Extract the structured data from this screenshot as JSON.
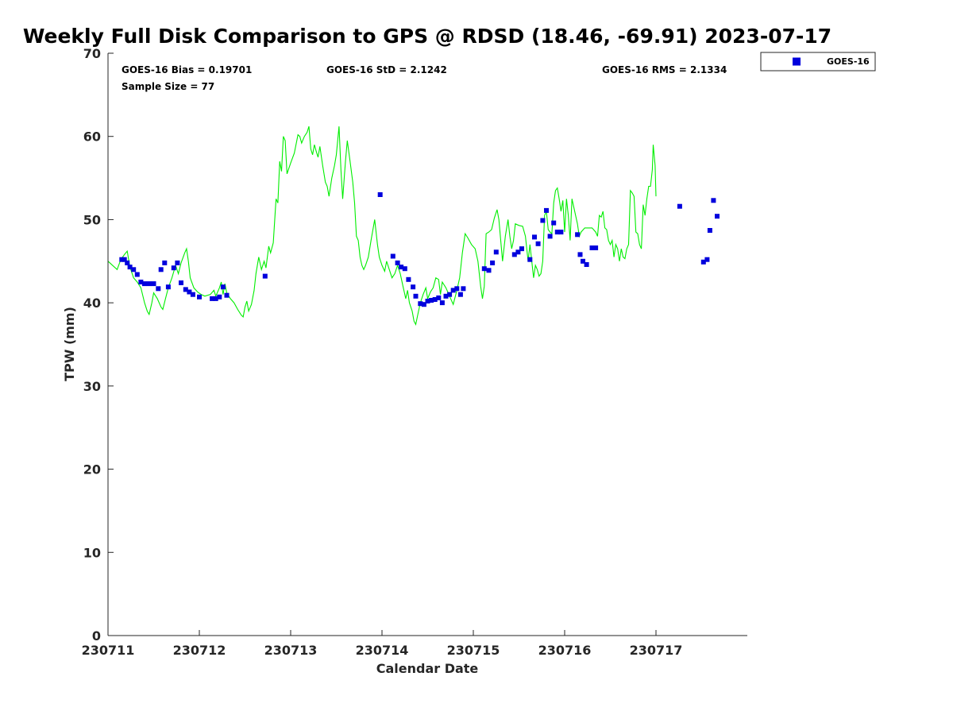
{
  "chart_data": {
    "type": "line",
    "title": "Weekly Full Disk Comparison to GPS @ RDSD (18.46, -69.91) 2023-07-17",
    "xlabel": "Calendar Date",
    "ylabel": "TPW (mm)",
    "xlim": [
      0,
      7
    ],
    "ylim": [
      0,
      70
    ],
    "x_ticks": [
      0,
      1,
      2,
      3,
      4,
      5,
      6
    ],
    "x_tick_labels": [
      "230711",
      "230712",
      "230713",
      "230714",
      "230715",
      "230716",
      "230717"
    ],
    "y_ticks": [
      0,
      10,
      20,
      30,
      40,
      50,
      60,
      70
    ],
    "y_tick_labels": [
      "0",
      "10",
      "20",
      "30",
      "40",
      "50",
      "60",
      "70"
    ],
    "stats": {
      "bias": "GOES-16 Bias = 0.19701",
      "std": "GOES-16 StD = 2.1242",
      "rms": "GOES-16 RMS = 2.1334",
      "sample": "Sample Size = 77"
    },
    "legend": {
      "label": "GOES-16",
      "position": "outside-top-right"
    },
    "colors": {
      "gps_line": "#00ee00",
      "goes_marker": "#0000dd"
    },
    "series": [
      {
        "name": "GPS",
        "kind": "line",
        "points": [
          [
            0.0,
            45.0
          ],
          [
            0.1,
            44.0
          ],
          [
            0.14,
            45.2
          ],
          [
            0.18,
            45.8
          ],
          [
            0.21,
            46.2
          ],
          [
            0.24,
            44.3
          ],
          [
            0.28,
            43.0
          ],
          [
            0.32,
            42.5
          ],
          [
            0.36,
            41.8
          ],
          [
            0.4,
            40.0
          ],
          [
            0.43,
            39.0
          ],
          [
            0.45,
            38.6
          ],
          [
            0.48,
            40.0
          ],
          [
            0.5,
            41.2
          ],
          [
            0.54,
            40.5
          ],
          [
            0.58,
            39.5
          ],
          [
            0.6,
            39.2
          ],
          [
            0.63,
            40.5
          ],
          [
            0.66,
            41.8
          ],
          [
            0.7,
            43.0
          ],
          [
            0.74,
            44.5
          ],
          [
            0.77,
            43.5
          ],
          [
            0.8,
            44.8
          ],
          [
            0.84,
            46.0
          ],
          [
            0.86,
            46.5
          ],
          [
            0.88,
            45.0
          ],
          [
            0.9,
            43.0
          ],
          [
            0.94,
            41.8
          ],
          [
            0.98,
            41.3
          ],
          [
            1.02,
            41.0
          ],
          [
            1.06,
            40.8
          ],
          [
            1.12,
            41.0
          ],
          [
            1.16,
            41.5
          ],
          [
            1.18,
            40.8
          ],
          [
            1.22,
            41.8
          ],
          [
            1.24,
            42.5
          ],
          [
            1.26,
            41.0
          ],
          [
            1.28,
            42.3
          ],
          [
            1.3,
            41.2
          ],
          [
            1.34,
            40.5
          ],
          [
            1.38,
            40.0
          ],
          [
            1.42,
            39.2
          ],
          [
            1.46,
            38.5
          ],
          [
            1.48,
            38.3
          ],
          [
            1.5,
            39.5
          ],
          [
            1.52,
            40.2
          ],
          [
            1.54,
            39.0
          ],
          [
            1.57,
            39.8
          ],
          [
            1.6,
            41.5
          ],
          [
            1.62,
            43.5
          ],
          [
            1.65,
            45.5
          ],
          [
            1.68,
            44.0
          ],
          [
            1.71,
            45.0
          ],
          [
            1.73,
            44.2
          ],
          [
            1.76,
            46.8
          ],
          [
            1.78,
            46.0
          ],
          [
            1.81,
            47.2
          ],
          [
            1.84,
            52.5
          ],
          [
            1.86,
            52.0
          ],
          [
            1.88,
            57.0
          ],
          [
            1.9,
            55.8
          ],
          [
            1.92,
            60.0
          ],
          [
            1.94,
            59.5
          ],
          [
            1.96,
            55.5
          ],
          [
            2.0,
            56.8
          ],
          [
            2.04,
            58.0
          ],
          [
            2.08,
            60.2
          ],
          [
            2.1,
            60.0
          ],
          [
            2.12,
            59.2
          ],
          [
            2.15,
            60.0
          ],
          [
            2.18,
            60.5
          ],
          [
            2.2,
            61.2
          ],
          [
            2.22,
            58.5
          ],
          [
            2.24,
            57.8
          ],
          [
            2.26,
            59.0
          ],
          [
            2.28,
            58.2
          ],
          [
            2.3,
            57.5
          ],
          [
            2.32,
            58.8
          ],
          [
            2.35,
            56.5
          ],
          [
            2.38,
            54.5
          ],
          [
            2.4,
            54.0
          ],
          [
            2.42,
            52.8
          ],
          [
            2.45,
            55.0
          ],
          [
            2.48,
            56.5
          ],
          [
            2.5,
            57.8
          ],
          [
            2.53,
            61.2
          ],
          [
            2.55,
            56.0
          ],
          [
            2.57,
            52.5
          ],
          [
            2.6,
            57.0
          ],
          [
            2.62,
            59.5
          ],
          [
            2.65,
            57.0
          ],
          [
            2.68,
            54.5
          ],
          [
            2.7,
            52.0
          ],
          [
            2.72,
            48.0
          ],
          [
            2.74,
            47.5
          ],
          [
            2.76,
            45.5
          ],
          [
            2.78,
            44.5
          ],
          [
            2.8,
            44.0
          ],
          [
            2.82,
            44.5
          ],
          [
            2.85,
            45.5
          ],
          [
            2.88,
            47.5
          ],
          [
            2.92,
            50.0
          ],
          [
            2.95,
            47.0
          ],
          [
            2.97,
            45.5
          ],
          [
            3.0,
            44.5
          ],
          [
            3.03,
            43.8
          ],
          [
            3.05,
            45.0
          ],
          [
            3.08,
            44.0
          ],
          [
            3.11,
            43.0
          ],
          [
            3.14,
            43.5
          ],
          [
            3.17,
            44.5
          ],
          [
            3.2,
            43.5
          ],
          [
            3.23,
            42.0
          ],
          [
            3.26,
            40.5
          ],
          [
            3.28,
            41.5
          ],
          [
            3.3,
            40.0
          ],
          [
            3.33,
            39.0
          ],
          [
            3.35,
            37.8
          ],
          [
            3.37,
            37.4
          ],
          [
            3.39,
            38.5
          ],
          [
            3.42,
            40.0
          ],
          [
            3.45,
            41.0
          ],
          [
            3.48,
            41.8
          ],
          [
            3.5,
            40.5
          ],
          [
            3.53,
            41.3
          ],
          [
            3.56,
            41.8
          ],
          [
            3.59,
            43.0
          ],
          [
            3.62,
            42.8
          ],
          [
            3.64,
            41.0
          ],
          [
            3.66,
            42.5
          ],
          [
            3.7,
            41.8
          ],
          [
            3.74,
            40.8
          ],
          [
            3.78,
            39.8
          ],
          [
            3.82,
            41.5
          ],
          [
            3.85,
            43.0
          ],
          [
            3.88,
            46.0
          ],
          [
            3.91,
            48.3
          ],
          [
            3.94,
            47.8
          ],
          [
            3.98,
            47.0
          ],
          [
            4.02,
            46.5
          ],
          [
            4.05,
            45.0
          ],
          [
            4.08,
            42.0
          ],
          [
            4.1,
            40.5
          ],
          [
            4.12,
            42.0
          ],
          [
            4.14,
            48.3
          ],
          [
            4.17,
            48.5
          ],
          [
            4.2,
            48.8
          ],
          [
            4.23,
            50.2
          ],
          [
            4.26,
            51.2
          ],
          [
            4.28,
            50.0
          ],
          [
            4.3,
            47.5
          ],
          [
            4.32,
            45.0
          ],
          [
            4.35,
            48.0
          ],
          [
            4.38,
            50.0
          ],
          [
            4.4,
            48.0
          ],
          [
            4.42,
            46.5
          ],
          [
            4.44,
            47.5
          ],
          [
            4.46,
            49.5
          ],
          [
            4.5,
            49.3
          ],
          [
            4.54,
            49.2
          ],
          [
            4.57,
            48.0
          ],
          [
            4.6,
            45.0
          ],
          [
            4.62,
            47.0
          ],
          [
            4.64,
            45.0
          ],
          [
            4.66,
            43.0
          ],
          [
            4.68,
            44.5
          ],
          [
            4.7,
            44.0
          ],
          [
            4.72,
            43.2
          ],
          [
            4.74,
            43.5
          ],
          [
            4.76,
            45.0
          ],
          [
            4.78,
            50.5
          ],
          [
            4.8,
            51.0
          ],
          [
            4.82,
            48.8
          ],
          [
            4.84,
            48.5
          ],
          [
            4.86,
            48.3
          ],
          [
            4.88,
            52.0
          ],
          [
            4.9,
            53.5
          ],
          [
            4.92,
            53.8
          ],
          [
            4.94,
            52.5
          ],
          [
            4.96,
            51.0
          ],
          [
            4.98,
            52.3
          ],
          [
            5.0,
            48.5
          ],
          [
            5.02,
            52.5
          ],
          [
            5.04,
            50.5
          ],
          [
            5.06,
            47.5
          ],
          [
            5.08,
            52.5
          ],
          [
            5.1,
            51.5
          ],
          [
            5.12,
            50.5
          ],
          [
            5.14,
            49.5
          ],
          [
            5.16,
            48.0
          ],
          [
            5.18,
            48.5
          ],
          [
            5.22,
            49.0
          ],
          [
            5.3,
            49.0
          ],
          [
            5.34,
            48.5
          ],
          [
            5.36,
            48.0
          ],
          [
            5.38,
            50.5
          ],
          [
            5.4,
            50.3
          ],
          [
            5.42,
            51.0
          ],
          [
            5.44,
            49.0
          ],
          [
            5.46,
            48.8
          ],
          [
            5.48,
            47.5
          ],
          [
            5.5,
            47.0
          ],
          [
            5.52,
            47.5
          ],
          [
            5.54,
            45.5
          ],
          [
            5.56,
            47.0
          ],
          [
            5.58,
            46.5
          ],
          [
            5.6,
            45.0
          ],
          [
            5.62,
            46.5
          ],
          [
            5.64,
            45.5
          ],
          [
            5.66,
            45.3
          ],
          [
            5.68,
            46.5
          ],
          [
            5.7,
            47.0
          ],
          [
            5.72,
            53.5
          ],
          [
            5.74,
            53.2
          ],
          [
            5.76,
            52.8
          ],
          [
            5.78,
            48.5
          ],
          [
            5.8,
            48.3
          ],
          [
            5.82,
            47.0
          ],
          [
            5.84,
            46.5
          ],
          [
            5.86,
            51.8
          ],
          [
            5.88,
            50.5
          ],
          [
            5.9,
            52.5
          ],
          [
            5.92,
            54.0
          ],
          [
            5.94,
            54.0
          ],
          [
            5.96,
            56.0
          ],
          [
            5.97,
            59.0
          ],
          [
            5.99,
            56.5
          ],
          [
            6.0,
            52.8
          ]
        ]
      },
      {
        "name": "GOES-16",
        "kind": "scatter",
        "points": [
          [
            0.15,
            45.2
          ],
          [
            0.18,
            45.2
          ],
          [
            0.21,
            44.8
          ],
          [
            0.24,
            44.3
          ],
          [
            0.28,
            44.0
          ],
          [
            0.32,
            43.4
          ],
          [
            0.36,
            42.5
          ],
          [
            0.4,
            42.3
          ],
          [
            0.45,
            42.3
          ],
          [
            0.5,
            42.3
          ],
          [
            0.55,
            41.7
          ],
          [
            0.58,
            44.0
          ],
          [
            0.62,
            44.8
          ],
          [
            0.66,
            41.9
          ],
          [
            0.72,
            44.2
          ],
          [
            0.76,
            44.8
          ],
          [
            0.8,
            42.4
          ],
          [
            0.85,
            41.6
          ],
          [
            0.89,
            41.3
          ],
          [
            0.93,
            41.0
          ],
          [
            1.0,
            40.7
          ],
          [
            1.14,
            40.5
          ],
          [
            1.18,
            40.5
          ],
          [
            1.22,
            40.7
          ],
          [
            1.26,
            41.9
          ],
          [
            1.3,
            40.9
          ],
          [
            1.72,
            43.2
          ],
          [
            2.98,
            53.0
          ],
          [
            3.12,
            45.6
          ],
          [
            3.17,
            44.8
          ],
          [
            3.21,
            44.3
          ],
          [
            3.25,
            44.1
          ],
          [
            3.29,
            42.8
          ],
          [
            3.34,
            41.9
          ],
          [
            3.37,
            40.8
          ],
          [
            3.42,
            39.9
          ],
          [
            3.46,
            39.8
          ],
          [
            3.5,
            40.2
          ],
          [
            3.54,
            40.3
          ],
          [
            3.58,
            40.4
          ],
          [
            3.62,
            40.6
          ],
          [
            3.66,
            40.0
          ],
          [
            3.7,
            40.8
          ],
          [
            3.74,
            41.0
          ],
          [
            3.78,
            41.5
          ],
          [
            3.82,
            41.7
          ],
          [
            3.86,
            41.0
          ],
          [
            3.89,
            41.7
          ],
          [
            4.12,
            44.1
          ],
          [
            4.17,
            43.9
          ],
          [
            4.21,
            44.8
          ],
          [
            4.25,
            46.1
          ],
          [
            4.45,
            45.8
          ],
          [
            4.49,
            46.1
          ],
          [
            4.53,
            46.5
          ],
          [
            4.62,
            45.2
          ],
          [
            4.67,
            47.9
          ],
          [
            4.71,
            47.1
          ],
          [
            4.76,
            49.9
          ],
          [
            4.8,
            51.1
          ],
          [
            4.84,
            48.0
          ],
          [
            4.88,
            49.6
          ],
          [
            4.92,
            48.5
          ],
          [
            4.96,
            48.5
          ],
          [
            5.14,
            48.2
          ],
          [
            5.17,
            45.8
          ],
          [
            5.2,
            45.0
          ],
          [
            5.24,
            44.6
          ],
          [
            5.3,
            46.6
          ],
          [
            5.34,
            46.6
          ],
          [
            6.26,
            51.6
          ],
          [
            6.52,
            44.9
          ],
          [
            6.56,
            45.2
          ],
          [
            6.59,
            48.7
          ],
          [
            6.63,
            52.3
          ],
          [
            6.67,
            50.4
          ]
        ]
      }
    ]
  }
}
